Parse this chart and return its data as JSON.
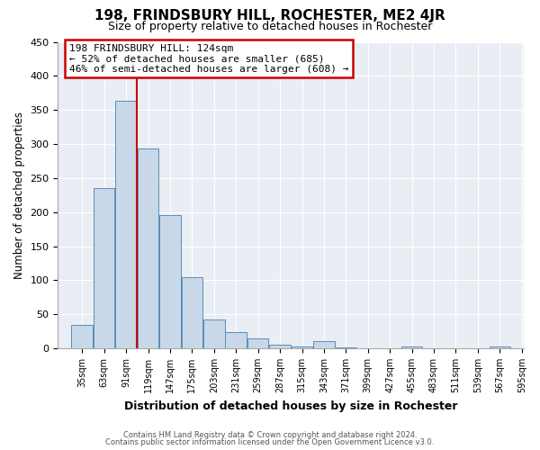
{
  "title": "198, FRINDSBURY HILL, ROCHESTER, ME2 4JR",
  "subtitle": "Size of property relative to detached houses in Rochester",
  "xlabel": "Distribution of detached houses by size in Rochester",
  "ylabel": "Number of detached properties",
  "bar_color": "#c8d8e8",
  "bar_edge_color": "#5b8db8",
  "plot_bg_color": "#e8eef4",
  "fig_bg_color": "#ffffff",
  "grid_color": "#ffffff",
  "bins": [
    35,
    63,
    91,
    119,
    147,
    175,
    203,
    231,
    259,
    287,
    315,
    343,
    371,
    399,
    427,
    455,
    483,
    511,
    539,
    567,
    595
  ],
  "counts": [
    35,
    235,
    363,
    293,
    196,
    104,
    43,
    24,
    14,
    5,
    3,
    11,
    1,
    0,
    0,
    3,
    0,
    0,
    0,
    3
  ],
  "tick_labels": [
    "35sqm",
    "63sqm",
    "91sqm",
    "119sqm",
    "147sqm",
    "175sqm",
    "203sqm",
    "231sqm",
    "259sqm",
    "287sqm",
    "315sqm",
    "343sqm",
    "371sqm",
    "399sqm",
    "427sqm",
    "455sqm",
    "483sqm",
    "511sqm",
    "539sqm",
    "567sqm",
    "595sqm"
  ],
  "vline_x": 119,
  "ylim": [
    0,
    450
  ],
  "yticks": [
    0,
    50,
    100,
    150,
    200,
    250,
    300,
    350,
    400,
    450
  ],
  "annotation_line1": "198 FRINDSBURY HILL: 124sqm",
  "annotation_line2": "← 52% of detached houses are smaller (685)",
  "annotation_line3": "46% of semi-detached houses are larger (608) →",
  "box_facecolor": "#ffffff",
  "box_edgecolor": "#cc0000",
  "vline_color": "#cc0000",
  "footer_line1": "Contains HM Land Registry data © Crown copyright and database right 2024.",
  "footer_line2": "Contains public sector information licensed under the Open Government Licence v3.0."
}
